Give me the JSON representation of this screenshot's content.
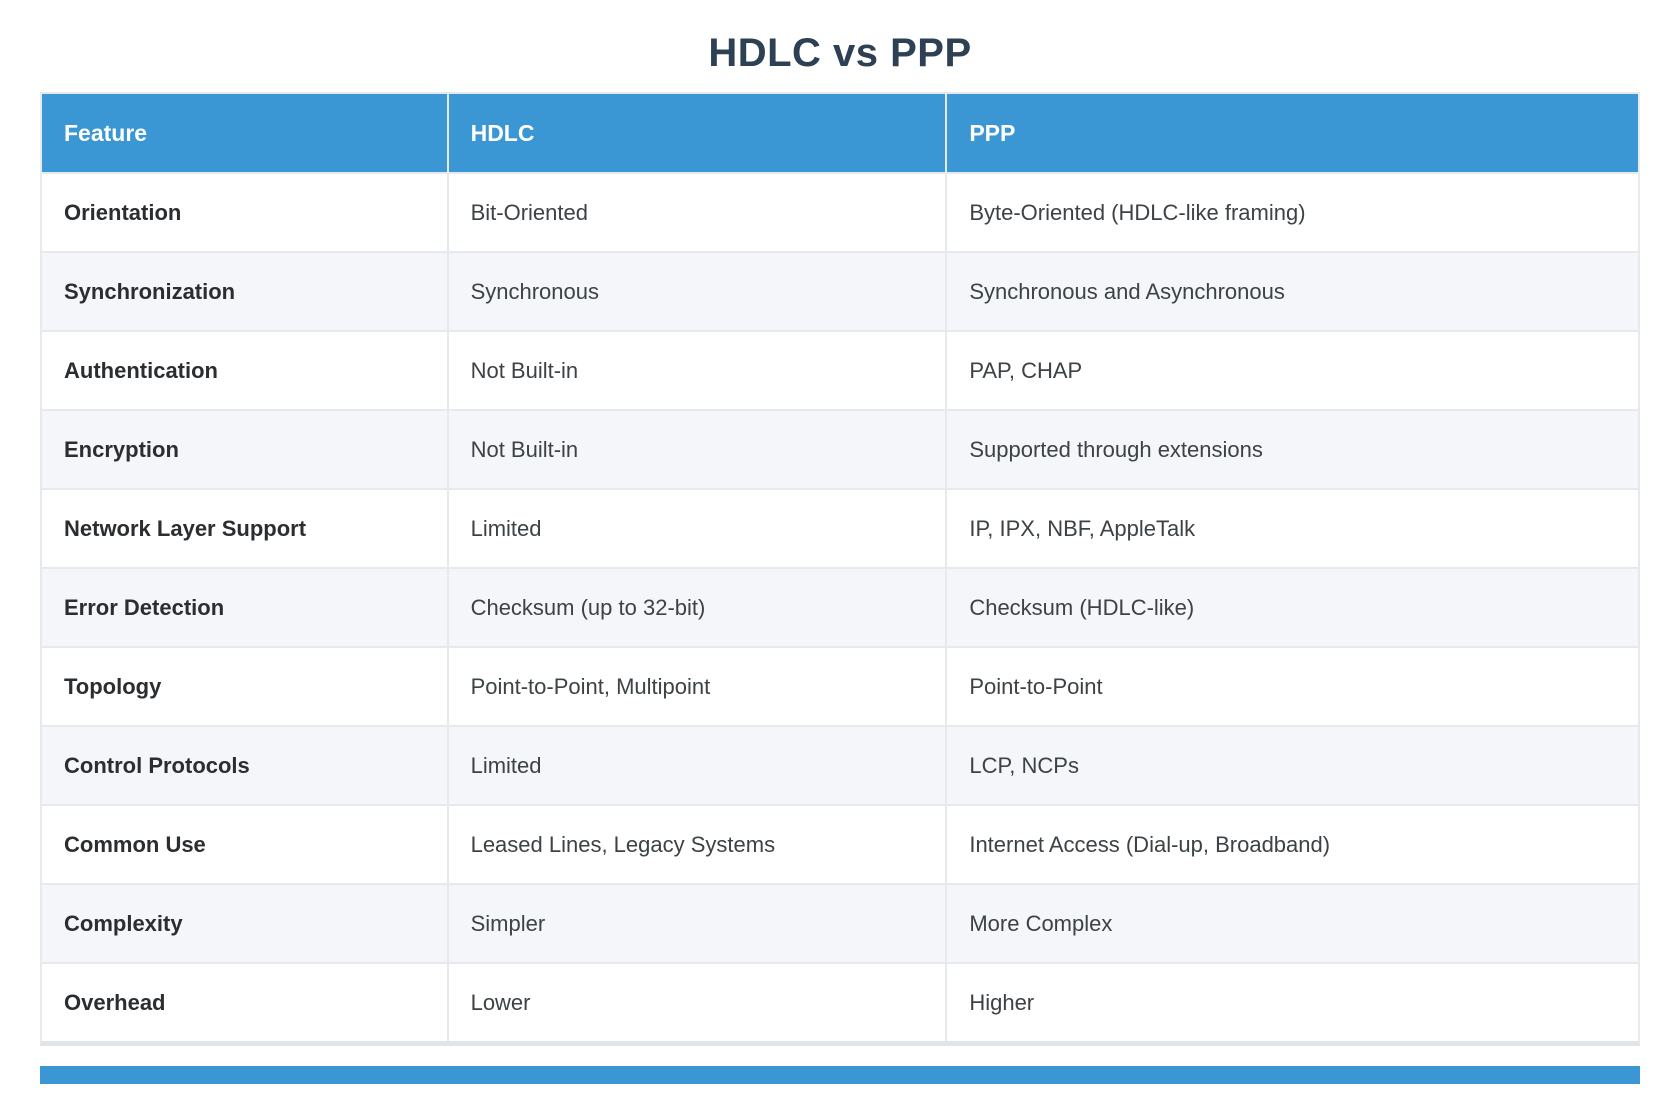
{
  "title": "HDLC vs PPP",
  "colors": {
    "header_bg": "#3b97d3",
    "header_text": "#ffffff",
    "title_color": "#2e4053",
    "feature_text": "#2b2e31",
    "value_text": "#3c4245",
    "stripe_bg": "#f4f6f9",
    "grid_line": "#e7eaec",
    "outer_border": "#e2e5e8",
    "accent_bar": "#3b97d3"
  },
  "table": {
    "columns": [
      "Feature",
      "HDLC",
      "PPP"
    ],
    "rows": [
      {
        "feature": "Orientation",
        "hdlc": "Bit-Oriented",
        "ppp": "Byte-Oriented (HDLC-like framing)"
      },
      {
        "feature": "Synchronization",
        "hdlc": "Synchronous",
        "ppp": "Synchronous and Asynchronous"
      },
      {
        "feature": "Authentication",
        "hdlc": "Not Built-in",
        "ppp": "PAP, CHAP"
      },
      {
        "feature": "Encryption",
        "hdlc": "Not Built-in",
        "ppp": "Supported through extensions"
      },
      {
        "feature": "Network Layer Support",
        "hdlc": "Limited",
        "ppp": "IP, IPX, NBF, AppleTalk"
      },
      {
        "feature": "Error Detection",
        "hdlc": "Checksum (up to 32-bit)",
        "ppp": "Checksum (HDLC-like)"
      },
      {
        "feature": "Topology",
        "hdlc": "Point-to-Point, Multipoint",
        "ppp": "Point-to-Point"
      },
      {
        "feature": "Control Protocols",
        "hdlc": "Limited",
        "ppp": "LCP, NCPs"
      },
      {
        "feature": "Common Use",
        "hdlc": "Leased Lines, Legacy Systems",
        "ppp": "Internet Access (Dial-up, Broadband)"
      },
      {
        "feature": "Complexity",
        "hdlc": "Simpler",
        "ppp": "More Complex"
      },
      {
        "feature": "Overhead",
        "hdlc": "Lower",
        "ppp": "Higher"
      }
    ]
  }
}
